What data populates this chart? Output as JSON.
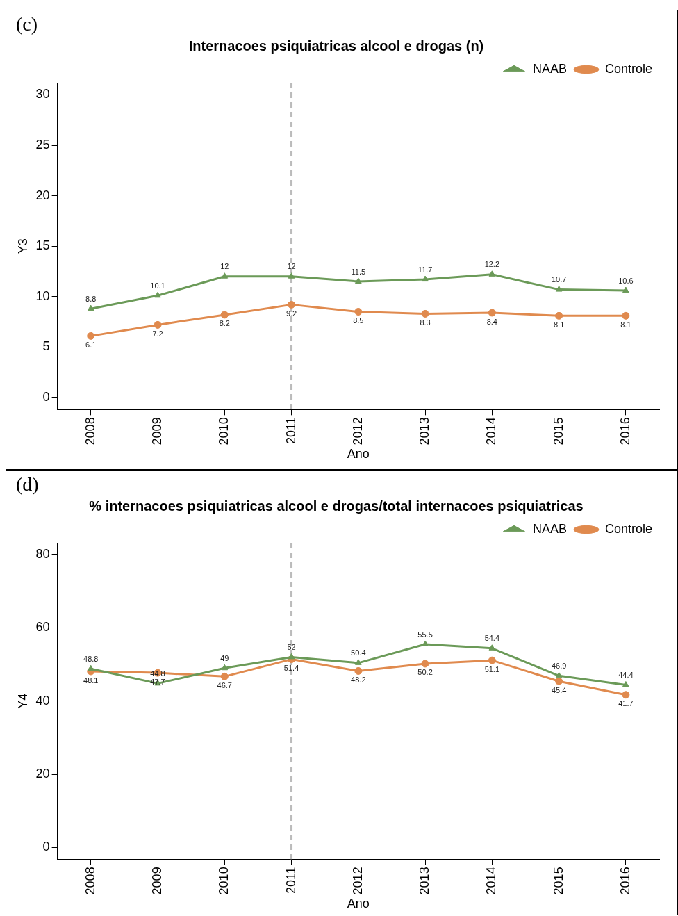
{
  "chart_data": [
    {
      "type": "line",
      "title": "Internacoes psiquiatricas alcool e drogas (n)",
      "xlabel": "Ano",
      "ylabel": "Y3",
      "categories": [
        "2008",
        "2009",
        "2010",
        "2011",
        "2012",
        "2013",
        "2014",
        "2015",
        "2016"
      ],
      "series": [
        {
          "name": "NAAB",
          "color": "#6b9a58",
          "marker": "triangle",
          "values": [
            8.8,
            10.1,
            12,
            12,
            11.5,
            11.7,
            12.2,
            10.7,
            10.6
          ]
        },
        {
          "name": "Controle",
          "color": "#e08a4e",
          "marker": "circle",
          "values": [
            6.1,
            7.2,
            8.2,
            9.2,
            8.5,
            8.3,
            8.4,
            8.1,
            8.1
          ]
        }
      ],
      "ylim": [
        -1.2,
        31.2
      ],
      "yticks": [
        0,
        5,
        10,
        15,
        20,
        25,
        30
      ],
      "grid": false,
      "legend": "top right",
      "data_labels": true,
      "ref_lines": [
        {
          "axis": "x",
          "value": "2011",
          "color": "#bbbbbb",
          "line_style": "dashed"
        }
      ],
      "annotations": [
        "(c)"
      ]
    },
    {
      "type": "line",
      "title": "% internacoes psiquiatricas alcool e drogas/total internacoes psiquiatricas",
      "xlabel": "Ano",
      "ylabel": "Y4",
      "categories": [
        "2008",
        "2009",
        "2010",
        "2011",
        "2012",
        "2013",
        "2014",
        "2015",
        "2016"
      ],
      "series": [
        {
          "name": "NAAB",
          "color": "#6b9a58",
          "marker": "triangle",
          "values": [
            48.8,
            44.8,
            49,
            52,
            50.4,
            55.5,
            54.4,
            46.9,
            44.4
          ]
        },
        {
          "name": "Controle",
          "color": "#e08a4e",
          "marker": "circle",
          "values": [
            48.1,
            47.7,
            46.7,
            51.4,
            48.2,
            50.2,
            51.1,
            45.4,
            41.7
          ]
        }
      ],
      "ylim": [
        -3.2,
        83.2
      ],
      "yticks": [
        0,
        20,
        40,
        60,
        80
      ],
      "grid": false,
      "legend": "top right",
      "data_labels": true,
      "ref_lines": [
        {
          "axis": "x",
          "value": "2011",
          "color": "#bbbbbb",
          "line_style": "dashed"
        }
      ],
      "annotations": [
        "(d)"
      ]
    }
  ]
}
